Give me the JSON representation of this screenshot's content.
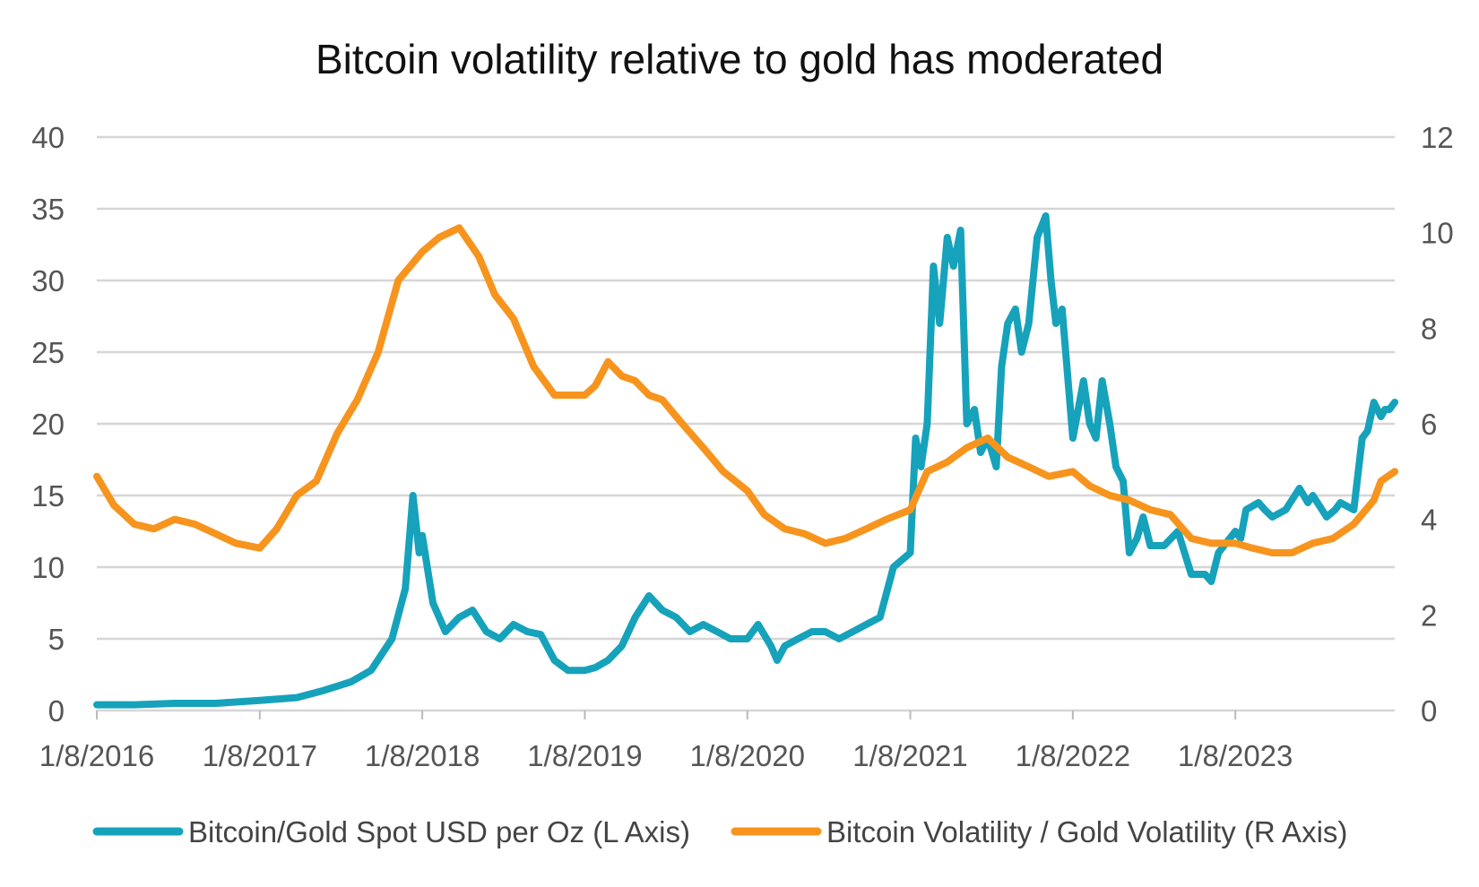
{
  "chart_data": {
    "type": "line",
    "title": "Bitcoin volatility relative to gold has moderated",
    "x_tick_labels": [
      "1/8/2016",
      "1/8/2017",
      "1/8/2018",
      "1/8/2019",
      "1/8/2020",
      "1/8/2021",
      "1/8/2022",
      "1/8/2023"
    ],
    "x_range": [
      "2016-01-08",
      "2024-01-01"
    ],
    "y_left": {
      "ticks": [
        "0",
        "5",
        "10",
        "15",
        "20",
        "25",
        "30",
        "35",
        "40"
      ],
      "lim": [
        0,
        40
      ]
    },
    "y_right": {
      "ticks": [
        "0",
        "2",
        "4",
        "6",
        "8",
        "10",
        "12"
      ],
      "lim": [
        0,
        12
      ]
    },
    "grid": true,
    "legend_position": "bottom",
    "series": [
      {
        "name": "Bitcoin/Gold Spot USD per Oz (L Axis)",
        "axis": "left",
        "color": "#16a2bb",
        "x": [
          "2016-01-08",
          "2016-04-01",
          "2016-07-01",
          "2016-10-01",
          "2017-01-08",
          "2017-04-01",
          "2017-06-01",
          "2017-08-01",
          "2017-09-15",
          "2017-11-01",
          "2017-12-01",
          "2017-12-18",
          "2018-01-01",
          "2018-01-08",
          "2018-02-01",
          "2018-03-01",
          "2018-04-01",
          "2018-05-01",
          "2018-06-01",
          "2018-07-01",
          "2018-08-01",
          "2018-09-01",
          "2018-10-01",
          "2018-11-01",
          "2018-12-01",
          "2019-01-08",
          "2019-02-01",
          "2019-03-01",
          "2019-04-01",
          "2019-05-01",
          "2019-06-01",
          "2019-07-01",
          "2019-08-01",
          "2019-09-01",
          "2019-10-01",
          "2019-11-01",
          "2019-12-01",
          "2020-01-08",
          "2020-02-01",
          "2020-03-01",
          "2020-03-15",
          "2020-04-01",
          "2020-05-01",
          "2020-06-01",
          "2020-07-01",
          "2020-08-01",
          "2020-09-01",
          "2020-10-01",
          "2020-11-01",
          "2020-12-01",
          "2021-01-08",
          "2021-01-20",
          "2021-02-01",
          "2021-02-15",
          "2021-03-01",
          "2021-03-15",
          "2021-04-01",
          "2021-04-15",
          "2021-05-01",
          "2021-05-15",
          "2021-06-01",
          "2021-06-15",
          "2021-07-01",
          "2021-07-20",
          "2021-08-01",
          "2021-08-15",
          "2021-09-01",
          "2021-09-15",
          "2021-10-01",
          "2021-10-20",
          "2021-11-08",
          "2021-11-20",
          "2021-12-01",
          "2021-12-15",
          "2022-01-08",
          "2022-02-01",
          "2022-02-15",
          "2022-03-01",
          "2022-03-15",
          "2022-04-01",
          "2022-04-15",
          "2022-05-01",
          "2022-05-15",
          "2022-06-01",
          "2022-06-15",
          "2022-07-01",
          "2022-08-01",
          "2022-09-01",
          "2022-10-01",
          "2022-11-01",
          "2022-11-15",
          "2022-12-01",
          "2023-01-08",
          "2023-01-20",
          "2023-02-01",
          "2023-03-01",
          "2023-03-15",
          "2023-04-01",
          "2023-05-01",
          "2023-06-01",
          "2023-06-20",
          "2023-07-01",
          "2023-08-01",
          "2023-08-20",
          "2023-09-01",
          "2023-10-01",
          "2023-10-20",
          "2023-11-01",
          "2023-11-15",
          "2023-12-01",
          "2023-12-10",
          "2023-12-20",
          "2024-01-01"
        ],
        "values": [
          0.4,
          0.4,
          0.5,
          0.5,
          0.7,
          0.9,
          1.4,
          2.0,
          2.8,
          5.0,
          8.5,
          15.0,
          11.0,
          12.2,
          7.5,
          5.5,
          6.5,
          7.0,
          5.5,
          5.0,
          6.0,
          5.5,
          5.3,
          3.5,
          2.8,
          2.8,
          3.0,
          3.5,
          4.5,
          6.5,
          8.0,
          7.0,
          6.5,
          5.5,
          6.0,
          5.5,
          5.0,
          5.0,
          6.0,
          4.5,
          3.5,
          4.5,
          5.0,
          5.5,
          5.5,
          5.0,
          5.5,
          6.0,
          6.5,
          10.0,
          11.0,
          19.0,
          17.0,
          20.0,
          31.0,
          27.0,
          33.0,
          31.0,
          33.5,
          20.0,
          21.0,
          18.0,
          19.0,
          17.0,
          24.0,
          27.0,
          28.0,
          25.0,
          27.0,
          33.0,
          34.5,
          30.0,
          27.0,
          28.0,
          19.0,
          23.0,
          20.0,
          19.0,
          23.0,
          20.0,
          17.0,
          16.0,
          11.0,
          12.0,
          13.5,
          11.5,
          11.5,
          12.5,
          9.5,
          9.5,
          9.0,
          11.0,
          12.5,
          12.0,
          14.0,
          14.5,
          14.0,
          13.5,
          14.0,
          15.5,
          14.5,
          15.0,
          13.5,
          14.0,
          14.5,
          14.0,
          19.0,
          19.5,
          21.5,
          20.5,
          21.0,
          21.0,
          21.5
        ]
      },
      {
        "name": "Bitcoin Volatility / Gold Volatility (R Axis)",
        "axis": "right",
        "color": "#f7941d",
        "x": [
          "2016-01-08",
          "2016-02-15",
          "2016-04-01",
          "2016-05-15",
          "2016-07-01",
          "2016-08-15",
          "2016-10-01",
          "2016-11-15",
          "2017-01-08",
          "2017-02-15",
          "2017-04-01",
          "2017-05-15",
          "2017-07-01",
          "2017-08-15",
          "2017-10-01",
          "2017-11-15",
          "2018-01-08",
          "2018-02-15",
          "2018-04-01",
          "2018-05-15",
          "2018-06-20",
          "2018-08-01",
          "2018-09-15",
          "2018-11-01",
          "2018-12-15",
          "2019-01-08",
          "2019-02-01",
          "2019-03-01",
          "2019-04-01",
          "2019-05-01",
          "2019-06-01",
          "2019-07-01",
          "2019-08-15",
          "2019-10-01",
          "2019-11-15",
          "2020-01-08",
          "2020-02-15",
          "2020-04-01",
          "2020-05-15",
          "2020-07-01",
          "2020-08-15",
          "2020-10-01",
          "2020-11-15",
          "2021-01-08",
          "2021-02-15",
          "2021-04-01",
          "2021-05-15",
          "2021-07-01",
          "2021-08-15",
          "2021-10-01",
          "2021-11-15",
          "2022-01-08",
          "2022-02-15",
          "2022-04-01",
          "2022-05-15",
          "2022-07-01",
          "2022-08-15",
          "2022-10-01",
          "2022-11-15",
          "2023-01-08",
          "2023-02-15",
          "2023-04-01",
          "2023-05-15",
          "2023-07-01",
          "2023-08-15",
          "2023-10-01",
          "2023-11-15",
          "2023-12-01",
          "2024-01-01"
        ],
        "values": [
          4.9,
          4.3,
          3.9,
          3.8,
          4.0,
          3.9,
          3.7,
          3.5,
          3.4,
          3.8,
          4.5,
          4.8,
          5.8,
          6.5,
          7.5,
          9.0,
          9.6,
          9.9,
          10.1,
          9.5,
          8.7,
          8.2,
          7.2,
          6.6,
          6.6,
          6.6,
          6.8,
          7.3,
          7.0,
          6.9,
          6.6,
          6.5,
          6.0,
          5.5,
          5.0,
          4.6,
          4.1,
          3.8,
          3.7,
          3.5,
          3.6,
          3.8,
          4.0,
          4.2,
          5.0,
          5.2,
          5.5,
          5.7,
          5.3,
          5.1,
          4.9,
          5.0,
          4.7,
          4.5,
          4.4,
          4.2,
          4.1,
          3.6,
          3.5,
          3.5,
          3.4,
          3.3,
          3.3,
          3.5,
          3.6,
          3.9,
          4.4,
          4.8,
          5.0
        ]
      }
    ]
  }
}
